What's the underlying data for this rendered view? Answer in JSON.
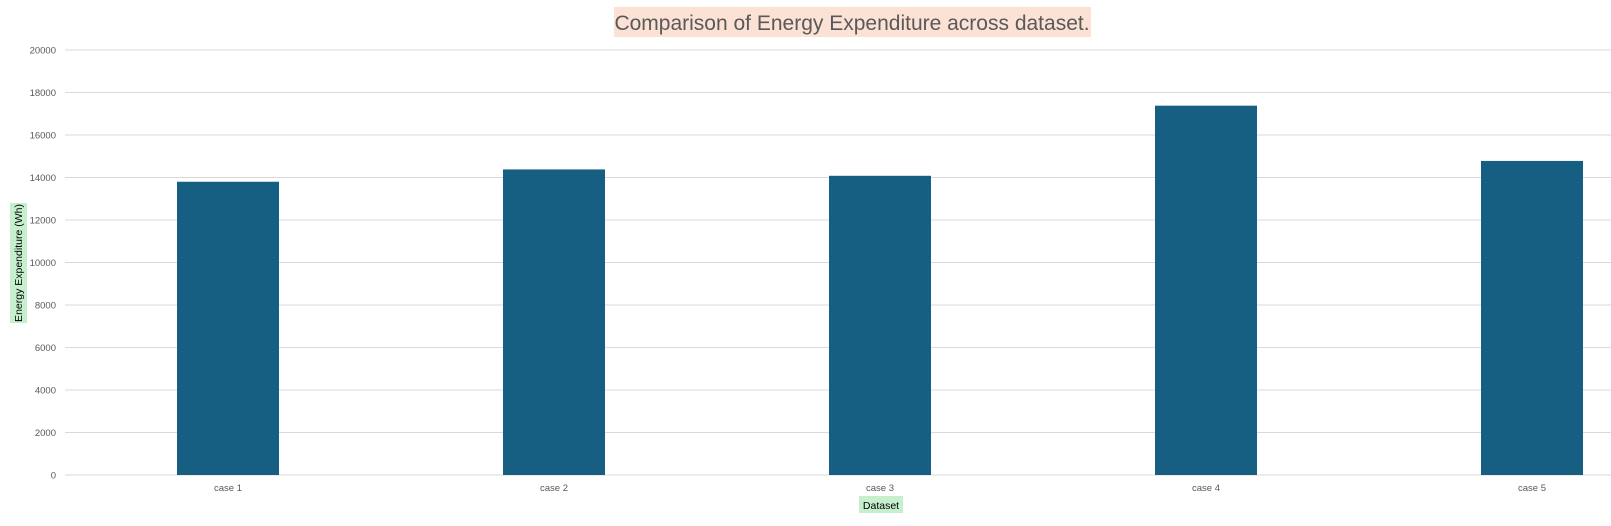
{
  "chart_data": {
    "type": "bar",
    "title": "Comparison of Energy Expenditure  across dataset.",
    "xlabel": "Dataset",
    "ylabel": "Energy Expenditure (Wh)",
    "categories": [
      "case 1",
      "case 2",
      "case 3",
      "case 4",
      "case 5"
    ],
    "values": [
      13800,
      14380,
      14080,
      17380,
      14780
    ],
    "ylim": [
      0,
      20000
    ],
    "yticks": [
      "0",
      "2000",
      "4000",
      "6000",
      "8000",
      "10000",
      "12000",
      "14000",
      "16000",
      "18000",
      "20000"
    ],
    "grid": true,
    "legend": "none",
    "bar_color": "#165f83",
    "title_highlight": "#fbe2d5",
    "axis_title_highlight": "#c6efce"
  }
}
